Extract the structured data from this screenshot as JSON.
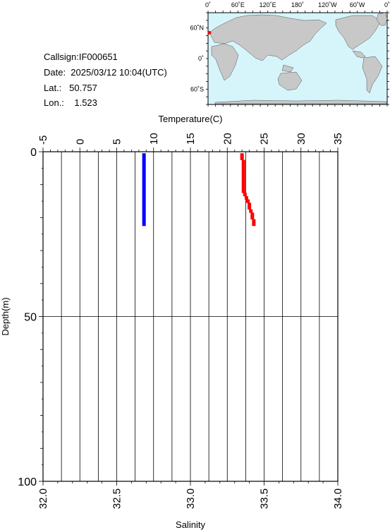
{
  "info": {
    "callsign": "Callsign:IF000651",
    "date": "Date:  2025/03/12 10:04(UTC)",
    "lat": "Lat.:   50.757",
    "lon": "Lon.:    1.523"
  },
  "map": {
    "lon_labels": [
      "0˚",
      "60˚E",
      "120˚E",
      "180˚",
      "120˚W",
      "60˚W",
      "0˚"
    ],
    "lat_labels": [
      "60˚N",
      "0˚",
      "60˚S"
    ],
    "marker": {
      "lon": 1.523,
      "lat": 50.757
    },
    "colors": {
      "ocean": "#d6f5fb",
      "land": "#c8c8c8",
      "marker": "#ff0000"
    }
  },
  "chart_data": {
    "type": "scatter",
    "top_axis": {
      "label": "Temperature(C)",
      "range": [
        -5,
        35
      ],
      "ticks": [
        "-5",
        "0",
        "5",
        "10",
        "15",
        "20",
        "25",
        "30",
        "35"
      ]
    },
    "bottom_axis": {
      "label": "Salinity",
      "range": [
        32.0,
        34.0
      ],
      "ticks": [
        "32.0",
        "32.5",
        "33.0",
        "33.5",
        "34.0"
      ]
    },
    "y_axis": {
      "label": "Depth(m)",
      "range": [
        0,
        100
      ],
      "inverted": true,
      "ticks": [
        "0",
        "50",
        "100"
      ]
    },
    "grid": true,
    "series": [
      {
        "color": "#0000ff",
        "axis": "top",
        "points": [
          [
            8.7,
            1
          ],
          [
            8.7,
            2
          ],
          [
            8.7,
            3
          ],
          [
            8.7,
            4
          ],
          [
            8.7,
            5
          ],
          [
            8.7,
            6
          ],
          [
            8.7,
            7
          ],
          [
            8.7,
            8
          ],
          [
            8.7,
            9
          ],
          [
            8.7,
            10
          ],
          [
            8.7,
            11
          ],
          [
            8.7,
            12
          ],
          [
            8.7,
            13
          ],
          [
            8.7,
            14
          ],
          [
            8.7,
            15
          ],
          [
            8.7,
            16
          ],
          [
            8.7,
            17
          ],
          [
            8.7,
            18
          ],
          [
            8.7,
            19
          ],
          [
            8.7,
            20
          ],
          [
            8.7,
            21
          ],
          [
            8.7,
            22
          ]
        ]
      },
      {
        "color": "#ff0000",
        "axis": "bottom",
        "points": [
          [
            33.35,
            1
          ],
          [
            33.35,
            2
          ],
          [
            33.36,
            3
          ],
          [
            33.36,
            4
          ],
          [
            33.36,
            5
          ],
          [
            33.36,
            6
          ],
          [
            33.36,
            7
          ],
          [
            33.36,
            8
          ],
          [
            33.36,
            9
          ],
          [
            33.36,
            10
          ],
          [
            33.36,
            11
          ],
          [
            33.36,
            12
          ],
          [
            33.37,
            13
          ],
          [
            33.38,
            14
          ],
          [
            33.39,
            15
          ],
          [
            33.4,
            16
          ],
          [
            33.4,
            17
          ],
          [
            33.41,
            18
          ],
          [
            33.42,
            19
          ],
          [
            33.42,
            20
          ],
          [
            33.43,
            21
          ],
          [
            33.43,
            22
          ]
        ]
      }
    ]
  }
}
